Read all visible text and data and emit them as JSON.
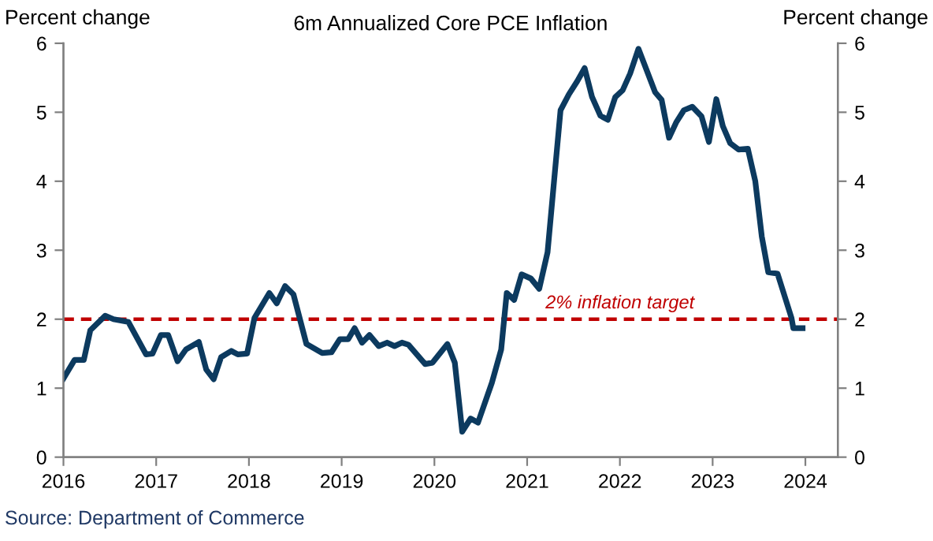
{
  "chart_data": {
    "type": "line",
    "title": "6m Annualized Core PCE Inflation",
    "ylabel": "Percent change",
    "y2label": "Percent change",
    "annotations": [
      "Source: Department of Commerce"
    ],
    "x": [
      2016.0,
      2016.12,
      2016.22,
      2016.29,
      2016.45,
      2016.54,
      2016.7,
      2016.89,
      2016.96,
      2017.05,
      2017.13,
      2017.23,
      2017.32,
      2017.46,
      2017.54,
      2017.62,
      2017.7,
      2017.81,
      2017.88,
      2017.98,
      2018.06,
      2018.22,
      2018.3,
      2018.39,
      2018.48,
      2018.62,
      2018.79,
      2018.89,
      2018.98,
      2019.07,
      2019.14,
      2019.22,
      2019.3,
      2019.4,
      2019.49,
      2019.57,
      2019.65,
      2019.72,
      2019.9,
      2019.98,
      2020.14,
      2020.22,
      2020.3,
      2020.39,
      2020.47,
      2020.62,
      2020.72,
      2020.78,
      2020.86,
      2020.94,
      2021.04,
      2021.13,
      2021.22,
      2021.36,
      2021.45,
      2021.54,
      2021.62,
      2021.7,
      2021.79,
      2021.87,
      2021.95,
      2022.03,
      2022.11,
      2022.2,
      2022.38,
      2022.45,
      2022.53,
      2022.61,
      2022.69,
      2022.78,
      2022.88,
      2022.96,
      2023.04,
      2023.11,
      2023.19,
      2023.28,
      2023.38,
      2023.46,
      2023.53,
      2023.6,
      2023.7,
      2023.85,
      2023.87,
      2023.97
    ],
    "series": [
      {
        "color": "#0c3a5f",
        "values": [
          1.14,
          1.41,
          1.41,
          1.84,
          2.05,
          2.0,
          1.96,
          1.49,
          1.5,
          1.77,
          1.77,
          1.39,
          1.56,
          1.67,
          1.27,
          1.13,
          1.45,
          1.54,
          1.49,
          1.5,
          2.02,
          2.38,
          2.23,
          2.48,
          2.36,
          1.64,
          1.51,
          1.52,
          1.71,
          1.71,
          1.87,
          1.66,
          1.77,
          1.61,
          1.66,
          1.61,
          1.66,
          1.63,
          1.35,
          1.37,
          1.64,
          1.37,
          0.37,
          0.56,
          0.5,
          1.08,
          1.56,
          2.38,
          2.28,
          2.65,
          2.59,
          2.44,
          2.97,
          5.03,
          5.26,
          5.45,
          5.64,
          5.22,
          4.95,
          4.89,
          5.22,
          5.32,
          5.56,
          5.92,
          5.29,
          5.18,
          4.63,
          4.86,
          5.03,
          5.08,
          4.94,
          4.57,
          5.19,
          4.8,
          4.55,
          4.46,
          4.47,
          4.0,
          3.2,
          2.68,
          2.66,
          2.02,
          1.87,
          1.87
        ]
      }
    ],
    "xlim": [
      2016,
      2024.35
    ],
    "xticks": [
      2016,
      2017,
      2018,
      2019,
      2020,
      2021,
      2022,
      2023,
      2024
    ],
    "ylim": [
      0,
      6
    ],
    "yticks": [
      0,
      1,
      2,
      3,
      4,
      5,
      6
    ],
    "y2lim": [
      0,
      6
    ],
    "y2ticks": [
      0,
      1,
      2,
      3,
      4,
      5,
      6
    ],
    "ref_lines": [
      {
        "axis": "y",
        "value": 2,
        "label": "2% inflation target",
        "color": "#c00000",
        "line_style": "dashed"
      }
    ],
    "grid": false,
    "legend": false,
    "marker": "none",
    "line_style": "solid"
  }
}
